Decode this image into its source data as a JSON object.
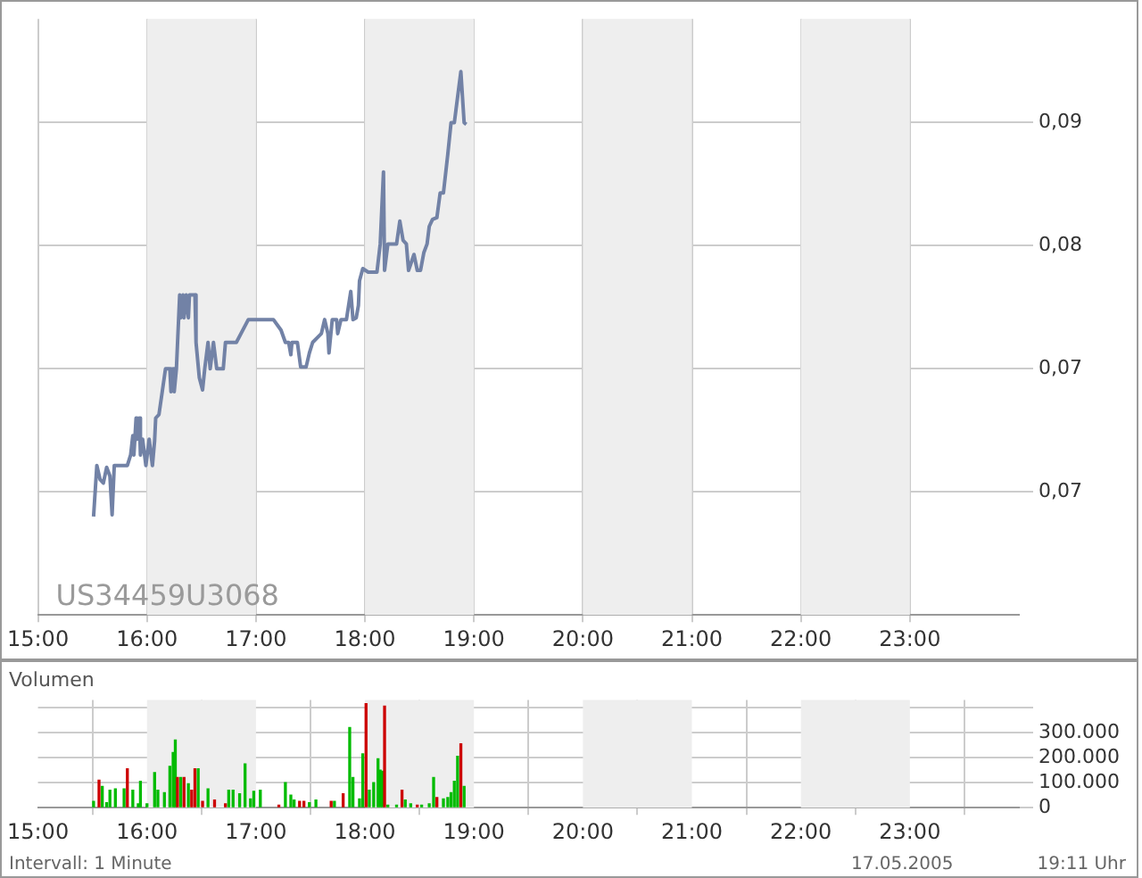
{
  "chart_data": [
    {
      "type": "line",
      "marker": "none",
      "grid": true,
      "annotations": [
        "US34459U3068"
      ],
      "xlim": [
        15,
        24
      ],
      "xticks": [
        {
          "value": 15,
          "label": "15:00"
        },
        {
          "value": 16,
          "label": "16:00"
        },
        {
          "value": 17,
          "label": "17:00"
        },
        {
          "value": 18,
          "label": "18:00"
        },
        {
          "value": 19,
          "label": "19:00"
        },
        {
          "value": 20,
          "label": "20:00"
        },
        {
          "value": 21,
          "label": "21:00"
        },
        {
          "value": 22,
          "label": "22:00"
        },
        {
          "value": 23,
          "label": "23:00"
        }
      ],
      "ylim": [
        0.06,
        0.0939
      ],
      "yticks": [
        {
          "value": 0.067,
          "label": "0,07"
        },
        {
          "value": 0.074,
          "label": "0,07"
        },
        {
          "value": 0.081,
          "label": "0,08"
        },
        {
          "value": 0.088,
          "label": "0,09"
        }
      ],
      "bands": [
        {
          "axis": "x",
          "from": 16,
          "to": 17,
          "color": "#eeeeee"
        },
        {
          "axis": "x",
          "from": 18,
          "to": 19,
          "color": "#eeeeee"
        },
        {
          "axis": "x",
          "from": 20,
          "to": 21,
          "color": "#eeeeee"
        },
        {
          "axis": "x",
          "from": 22,
          "to": 23,
          "color": "#eeeeee"
        }
      ],
      "series": [
        {
          "color": "#7282a6",
          "x": [
            15.51,
            15.54,
            15.57,
            15.6,
            15.63,
            15.66,
            15.68,
            15.7,
            15.74,
            15.82,
            15.85,
            15.87,
            15.88,
            15.9,
            15.91,
            15.93,
            15.94,
            15.96,
            15.99,
            16.02,
            16.05,
            16.07,
            16.08,
            16.11,
            16.14,
            16.17,
            16.21,
            16.22,
            16.24,
            16.25,
            16.27,
            16.3,
            16.31,
            16.33,
            16.34,
            16.36,
            16.38,
            16.39,
            16.44,
            16.45,
            16.48,
            16.51,
            16.53,
            16.56,
            16.58,
            16.61,
            16.64,
            16.7,
            16.72,
            16.78,
            16.82,
            16.93,
            17.06,
            17.16,
            17.23,
            17.27,
            17.3,
            17.32,
            17.33,
            17.38,
            17.41,
            17.46,
            17.49,
            17.52,
            17.6,
            17.63,
            17.66,
            17.67,
            17.7,
            17.74,
            17.75,
            17.78,
            17.83,
            17.87,
            17.89,
            17.92,
            17.94,
            17.95,
            17.98,
            18.03,
            18.06,
            18.11,
            18.14,
            18.17,
            18.18,
            18.21,
            18.29,
            18.32,
            18.35,
            18.38,
            18.4,
            18.45,
            18.48,
            18.51,
            18.54,
            18.57,
            18.59,
            18.62,
            18.66,
            18.69,
            18.72,
            18.76,
            18.79,
            18.82,
            18.88,
            18.91,
            18.93
          ],
          "values": [
            0.0656,
            0.0685,
            0.0677,
            0.0675,
            0.0684,
            0.0679,
            0.0657,
            0.0685,
            0.0685,
            0.0685,
            0.0691,
            0.0702,
            0.0691,
            0.0712,
            0.07,
            0.0712,
            0.0691,
            0.07,
            0.0685,
            0.07,
            0.0685,
            0.0699,
            0.0712,
            0.0714,
            0.0727,
            0.074,
            0.074,
            0.0727,
            0.074,
            0.0727,
            0.074,
            0.0782,
            0.0769,
            0.0782,
            0.0769,
            0.0782,
            0.0769,
            0.0782,
            0.0782,
            0.0755,
            0.0735,
            0.0728,
            0.074,
            0.0755,
            0.074,
            0.0755,
            0.074,
            0.074,
            0.0755,
            0.0755,
            0.0755,
            0.0768,
            0.0768,
            0.0768,
            0.0762,
            0.0755,
            0.0755,
            0.0748,
            0.0755,
            0.0755,
            0.0741,
            0.0741,
            0.0749,
            0.0755,
            0.076,
            0.0768,
            0.076,
            0.0749,
            0.0768,
            0.0768,
            0.076,
            0.0768,
            0.0768,
            0.0784,
            0.0768,
            0.0769,
            0.0776,
            0.079,
            0.0797,
            0.0795,
            0.0795,
            0.0795,
            0.0811,
            0.0852,
            0.0796,
            0.0811,
            0.0811,
            0.0824,
            0.0813,
            0.0811,
            0.0796,
            0.0805,
            0.0796,
            0.0796,
            0.0806,
            0.0811,
            0.0821,
            0.0825,
            0.0826,
            0.084,
            0.084,
            0.0862,
            0.088,
            0.088,
            0.0909,
            0.088,
            0.0879
          ]
        }
      ]
    },
    {
      "type": "bar",
      "title": "Volumen",
      "grid": true,
      "annotations": [
        "Intervall: 1 Minute",
        "17.05.2005",
        "19:11 Uhr"
      ],
      "xlim": [
        15,
        24
      ],
      "xticks": [
        {
          "value": 15,
          "label": "15:00"
        },
        {
          "value": 16,
          "label": "16:00"
        },
        {
          "value": 17,
          "label": "17:00"
        },
        {
          "value": 18,
          "label": "18:00"
        },
        {
          "value": 19,
          "label": "19:00"
        },
        {
          "value": 20,
          "label": "20:00"
        },
        {
          "value": 21,
          "label": "21:00"
        },
        {
          "value": 22,
          "label": "22:00"
        },
        {
          "value": 23,
          "label": "23:00"
        }
      ],
      "ylim": [
        0,
        430000
      ],
      "yticks": [
        {
          "value": 0,
          "label": "0"
        },
        {
          "value": 100000,
          "label": "100.000"
        },
        {
          "value": 200000,
          "label": "200.000"
        },
        {
          "value": 300000,
          "label": "300.000"
        },
        {
          "value": 400000,
          "label": null
        }
      ],
      "bands": [
        {
          "axis": "x",
          "from": 16,
          "to": 17,
          "color": "#eeeeee"
        },
        {
          "axis": "x",
          "from": 18,
          "to": 19,
          "color": "#eeeeee"
        },
        {
          "axis": "x",
          "from": 20,
          "to": 21,
          "color": "#eeeeee"
        },
        {
          "axis": "x",
          "from": 22,
          "to": 23,
          "color": "#eeeeee"
        }
      ],
      "x": [
        15.51,
        15.56,
        15.59,
        15.63,
        15.66,
        15.71,
        15.79,
        15.82,
        15.87,
        15.92,
        15.94,
        16.0,
        16.07,
        16.1,
        16.16,
        16.21,
        16.24,
        16.26,
        16.28,
        16.31,
        16.34,
        16.38,
        16.41,
        16.44,
        16.47,
        16.51,
        16.56,
        16.62,
        16.72,
        16.75,
        16.79,
        16.85,
        16.9,
        16.95,
        16.98,
        17.04,
        17.21,
        17.27,
        17.32,
        17.35,
        17.4,
        17.44,
        17.49,
        17.55,
        17.69,
        17.72,
        17.8,
        17.86,
        17.89,
        17.95,
        17.98,
        18.01,
        18.04,
        18.08,
        18.12,
        18.14,
        18.16,
        18.18,
        18.21,
        18.29,
        18.34,
        18.37,
        18.42,
        18.48,
        18.52,
        18.59,
        18.63,
        18.66,
        18.72,
        18.76,
        18.79,
        18.82,
        18.85,
        18.88,
        18.91
      ],
      "values": [
        25000,
        110000,
        85000,
        20000,
        70000,
        75000,
        75000,
        155000,
        70000,
        15000,
        105000,
        15000,
        140000,
        70000,
        60000,
        165000,
        220000,
        270000,
        120000,
        120000,
        120000,
        95000,
        70000,
        155000,
        155000,
        25000,
        75000,
        30000,
        15000,
        70000,
        70000,
        55000,
        175000,
        35000,
        65000,
        70000,
        10000,
        100000,
        50000,
        30000,
        25000,
        25000,
        20000,
        30000,
        25000,
        25000,
        55000,
        320000,
        120000,
        35000,
        215000,
        415000,
        70000,
        100000,
        195000,
        150000,
        145000,
        405000,
        10000,
        10000,
        70000,
        30000,
        15000,
        10000,
        10000,
        15000,
        120000,
        40000,
        35000,
        40000,
        60000,
        105000,
        205000,
        255000,
        85000
      ],
      "colors": [
        "#00bb00",
        "#cc0000",
        "#00bb00",
        "#00bb00",
        "#00bb00",
        "#00bb00",
        "#00bb00",
        "#cc0000",
        "#00bb00",
        "#00bb00",
        "#00bb00",
        "#00bb00",
        "#00bb00",
        "#00bb00",
        "#00bb00",
        "#00bb00",
        "#00bb00",
        "#00bb00",
        "#cc0000",
        "#00bb00",
        "#cc0000",
        "#00bb00",
        "#cc0000",
        "#cc0000",
        "#00bb00",
        "#cc0000",
        "#00bb00",
        "#cc0000",
        "#cc0000",
        "#00bb00",
        "#00bb00",
        "#00bb00",
        "#00bb00",
        "#00bb00",
        "#00bb00",
        "#00bb00",
        "#cc0000",
        "#00bb00",
        "#00bb00",
        "#00bb00",
        "#cc0000",
        "#cc0000",
        "#00bb00",
        "#00bb00",
        "#cc0000",
        "#00bb00",
        "#cc0000",
        "#00bb00",
        "#00bb00",
        "#00bb00",
        "#00bb00",
        "#cc0000",
        "#00bb00",
        "#00bb00",
        "#00bb00",
        "#00bb00",
        "#00bb00",
        "#cc0000",
        "#00bb00",
        "#00bb00",
        "#cc0000",
        "#00bb00",
        "#00bb00",
        "#cc0000",
        "#00bb00",
        "#00bb00",
        "#00bb00",
        "#cc0000",
        "#00bb00",
        "#00bb00",
        "#00bb00",
        "#00bb00",
        "#00bb00",
        "#cc0000",
        "#00bb00"
      ]
    }
  ]
}
